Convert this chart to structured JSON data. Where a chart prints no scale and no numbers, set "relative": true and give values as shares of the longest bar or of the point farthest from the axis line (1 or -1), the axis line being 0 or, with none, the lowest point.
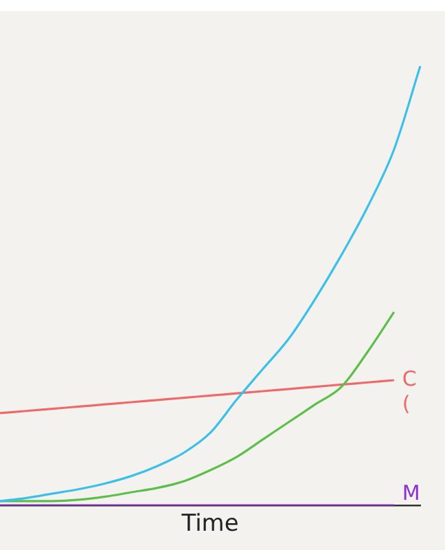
{
  "chart_data": {
    "type": "line",
    "relative": true,
    "xlabel": "Time",
    "categories": [
      null,
      null,
      null,
      null,
      null,
      null,
      null,
      null,
      null,
      null,
      null,
      null,
      null,
      null,
      null,
      null,
      null
    ],
    "series": [
      {
        "color": "#3cbfe8",
        "values": [
          0.01,
          0.017,
          0.027,
          0.037,
          0.05,
          0.067,
          0.09,
          0.12,
          0.165,
          0.24,
          0.31,
          0.38,
          0.47,
          0.57,
          0.68,
          0.81,
          1
        ]
      },
      {
        "color": "#5cbf4a",
        "values": [
          0.01,
          0.01,
          0.01,
          0.013,
          0.02,
          0.03,
          0.04,
          0.055,
          0.08,
          0.11,
          0.15,
          0.19,
          0.23,
          0.27,
          0.35,
          0.44,
          null
        ]
      },
      {
        "name": "C",
        "color": "#ee6a6a",
        "values": [
          0.21,
          0.215,
          0.22,
          0.225,
          0.23,
          0.235,
          0.24,
          0.245,
          0.25,
          0.255,
          0.26,
          0.265,
          0.27,
          0.275,
          0.28,
          0.285,
          null
        ]
      },
      {
        "name": "M",
        "color": "#8b2fd0",
        "values": [
          0,
          0,
          0,
          0,
          0,
          0,
          0,
          0,
          0,
          0,
          0,
          0,
          0,
          0,
          0,
          0,
          null
        ]
      }
    ],
    "annotations": [
      "("
    ],
    "grid": false,
    "legend": false,
    "marker": "none",
    "line_style": "solid"
  }
}
